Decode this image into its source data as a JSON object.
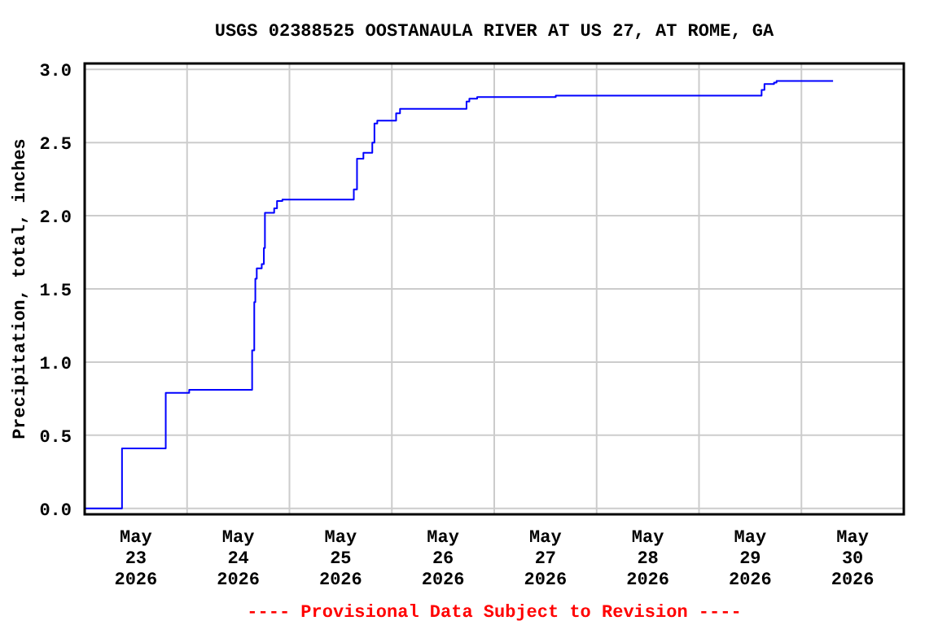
{
  "chart_data": {
    "type": "step",
    "title": "USGS 02388525 OOSTANAULA RIVER AT US 27, AT ROME, GA",
    "ylabel": "Precipitation, total, inches",
    "annotations": [
      "---- Provisional Data Subject to Revision ----"
    ],
    "series": [
      {
        "color": "#0000ff",
        "x": [
          "2026-05-23T00:00",
          "2026-05-23T08:45",
          "2026-05-23T19:00",
          "2026-05-24T00:30",
          "2026-05-24T15:15",
          "2026-05-24T15:45",
          "2026-05-24T16:00",
          "2026-05-24T16:20",
          "2026-05-24T17:30",
          "2026-05-24T18:00",
          "2026-05-24T18:15",
          "2026-05-24T20:25",
          "2026-05-24T21:05",
          "2026-05-24T22:20",
          "2026-05-25T15:05",
          "2026-05-25T15:50",
          "2026-05-25T17:20",
          "2026-05-25T19:25",
          "2026-05-25T19:55",
          "2026-05-25T20:35",
          "2026-05-26T01:00",
          "2026-05-26T01:55",
          "2026-05-26T17:30",
          "2026-05-26T18:10",
          "2026-05-26T20:00",
          "2026-05-27T14:25",
          "2026-05-29T14:40",
          "2026-05-29T15:20",
          "2026-05-29T17:35",
          "2026-05-29T18:10",
          "2026-05-30T07:25"
        ],
        "values": [
          0,
          0.41,
          0.79,
          0.81,
          1.08,
          1.41,
          1.57,
          1.64,
          1.67,
          1.78,
          2.02,
          2.05,
          2.1,
          2.11,
          2.18,
          2.39,
          2.43,
          2.5,
          2.63,
          2.65,
          2.7,
          2.73,
          2.78,
          2.8,
          2.81,
          2.82,
          2.86,
          2.9,
          2.91,
          2.92,
          2.92
        ]
      }
    ],
    "xlim": [
      "2026-05-23T00:00",
      "2026-05-31T00:00"
    ],
    "xticks": [
      {
        "value": "2026-05-23T12:00",
        "label": "May\n23\n2026"
      },
      {
        "value": "2026-05-24T00:00",
        "label": null
      },
      {
        "value": "2026-05-24T12:00",
        "label": "May\n24\n2026"
      },
      {
        "value": "2026-05-25T00:00",
        "label": null
      },
      {
        "value": "2026-05-25T12:00",
        "label": "May\n25\n2026"
      },
      {
        "value": "2026-05-26T00:00",
        "label": null
      },
      {
        "value": "2026-05-26T12:00",
        "label": "May\n26\n2026"
      },
      {
        "value": "2026-05-27T00:00",
        "label": null
      },
      {
        "value": "2026-05-27T12:00",
        "label": "May\n27\n2026"
      },
      {
        "value": "2026-05-28T00:00",
        "label": null
      },
      {
        "value": "2026-05-28T12:00",
        "label": "May\n28\n2026"
      },
      {
        "value": "2026-05-29T00:00",
        "label": null
      },
      {
        "value": "2026-05-29T12:00",
        "label": "May\n29\n2026"
      },
      {
        "value": "2026-05-30T00:00",
        "label": null
      },
      {
        "value": "2026-05-30T12:00",
        "label": "May\n30\n2026"
      }
    ],
    "ylim": [
      -0.04,
      3.04
    ],
    "yticks": [
      {
        "value": 0,
        "label": "0.0"
      },
      0.5,
      {
        "value": 1,
        "label": "1.0"
      },
      1.5,
      {
        "value": 2,
        "label": "2.0"
      },
      2.5,
      {
        "value": 3,
        "label": "3.0"
      }
    ],
    "grid": true
  }
}
